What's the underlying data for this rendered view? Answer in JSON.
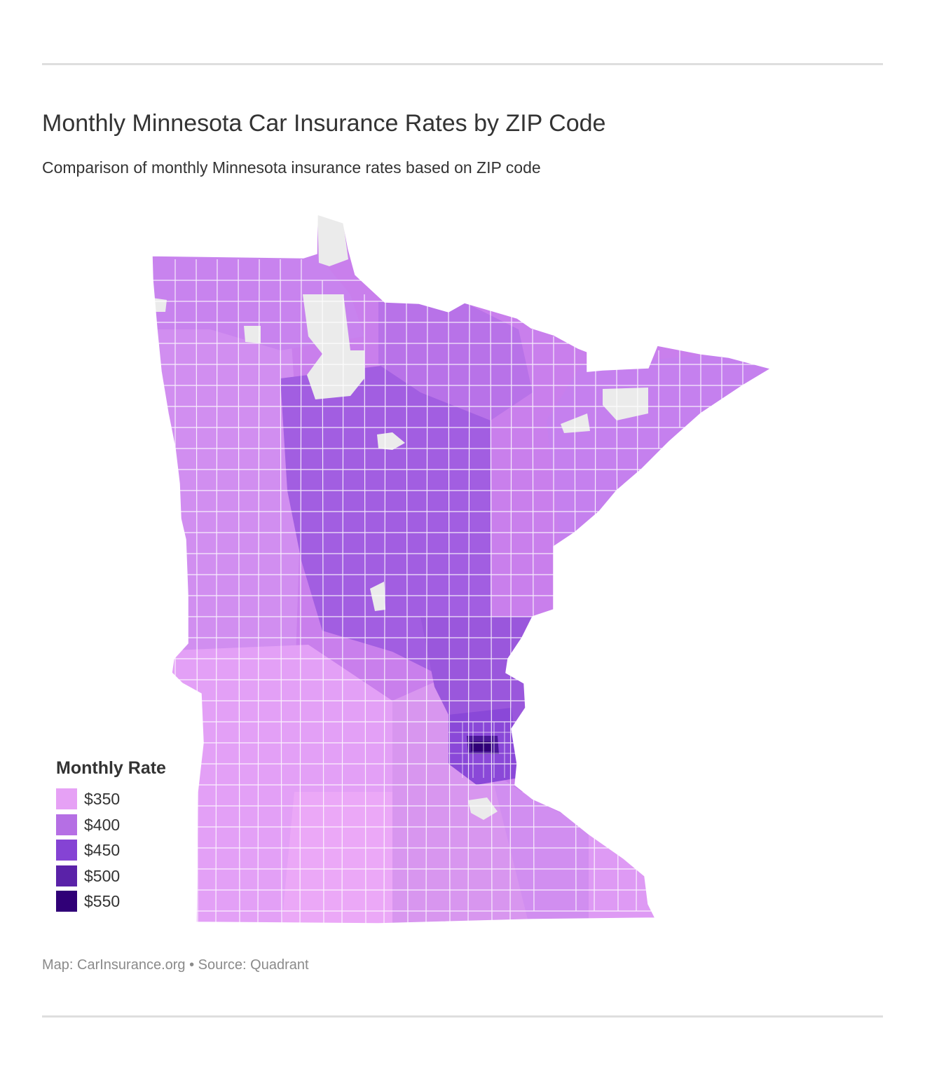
{
  "header": {
    "title": "Monthly Minnesota Car Insurance Rates by ZIP Code",
    "subtitle": "Comparison of monthly Minnesota insurance rates based on ZIP code"
  },
  "legend": {
    "title": "Monthly Rate",
    "items": [
      {
        "label": "$350",
        "color": "#e6a1f5"
      },
      {
        "label": "$400",
        "color": "#b56fe4"
      },
      {
        "label": "$450",
        "color": "#8543d4"
      },
      {
        "label": "$500",
        "color": "#5a22a8"
      },
      {
        "label": "$550",
        "color": "#300077"
      }
    ]
  },
  "map": {
    "colors": {
      "no_data": "#ebebeb",
      "boundary": "#ffffff",
      "band_350": "#e6a1f5",
      "band_375": "#d98cef",
      "band_400": "#c97fec",
      "band_425": "#b56fe4",
      "band_450": "#9d5adc",
      "band_500": "#5a22a8",
      "band_550": "#300077"
    }
  },
  "footer": {
    "credit": "Map: CarInsurance.org • Source: Quadrant"
  }
}
